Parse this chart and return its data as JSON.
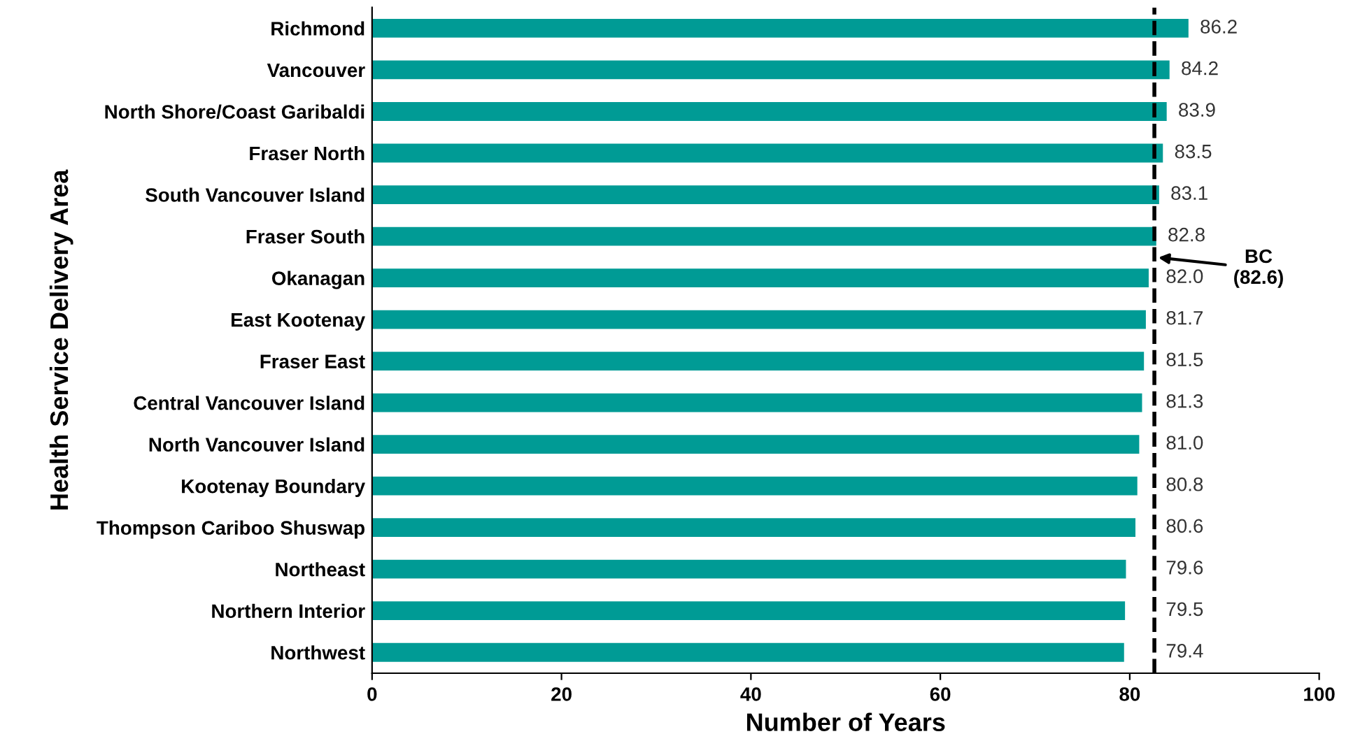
{
  "chart_data": {
    "type": "bar",
    "orientation": "horizontal",
    "xlabel": "Number of Years",
    "ylabel": "Health Service Delivery Area",
    "categories": [
      "Richmond",
      "Vancouver",
      "North Shore/Coast Garibaldi",
      "Fraser North",
      "South Vancouver Island",
      "Fraser South",
      "Okanagan",
      "East Kootenay",
      "Fraser East",
      "Central Vancouver Island",
      "North Vancouver Island",
      "Kootenay Boundary",
      "Thompson Cariboo Shuswap",
      "Northeast",
      "Northern Interior",
      "Northwest"
    ],
    "values": [
      86.2,
      84.2,
      83.9,
      83.5,
      83.1,
      82.8,
      82.0,
      81.7,
      81.5,
      81.3,
      81.0,
      80.8,
      80.6,
      79.6,
      79.5,
      79.4
    ],
    "color": "#009b95",
    "xlim": [
      0,
      100
    ],
    "xticks": [
      0,
      20,
      40,
      60,
      80,
      100
    ],
    "value_labels": [
      "86.2",
      "84.2",
      "83.9",
      "83.5",
      "83.1",
      "82.8",
      "82.0",
      "81.7",
      "81.5",
      "81.3",
      "81.0",
      "80.8",
      "80.6",
      "79.6",
      "79.5",
      "79.4"
    ],
    "grid": false,
    "ref_lines": [
      {
        "axis": "x",
        "value": 82.6,
        "label": "BC (82.6)",
        "color": "#000000",
        "line_style": "dashed"
      }
    ]
  }
}
